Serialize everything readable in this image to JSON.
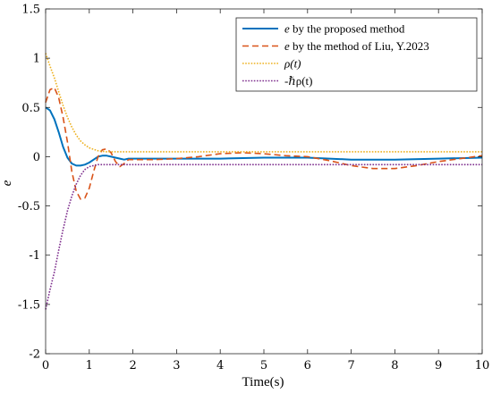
{
  "chart_data": {
    "type": "line",
    "title": "",
    "xlabel": "Time(s)",
    "ylabel": "e",
    "xlim": [
      0,
      10
    ],
    "ylim": [
      -2,
      1.5
    ],
    "xticks": [
      0,
      1,
      2,
      3,
      4,
      5,
      6,
      7,
      8,
      9,
      10
    ],
    "yticks": [
      -2,
      -1.5,
      -1,
      -0.5,
      0,
      0.5,
      1,
      1.5
    ],
    "xtick_labels": [
      "0",
      "1",
      "2",
      "3",
      "4",
      "5",
      "6",
      "7",
      "8",
      "9",
      "10"
    ],
    "ytick_labels": [
      "-2",
      "-1.5",
      "-1",
      "-0.5",
      "0",
      "0.5",
      "1",
      "1.5"
    ],
    "grid": false,
    "legend_position": "top-right",
    "series": [
      {
        "name": "e by the proposed method",
        "legend": {
          "italic": "e",
          "rest": " by the proposed method"
        },
        "color": "#0072BD",
        "style": "solid",
        "x": [
          0,
          0.1,
          0.2,
          0.3,
          0.4,
          0.5,
          0.6,
          0.7,
          0.8,
          0.9,
          1.0,
          1.1,
          1.2,
          1.3,
          1.4,
          1.5,
          1.6,
          1.7,
          1.8,
          1.9,
          2.0,
          2.5,
          3,
          4,
          5,
          6,
          7,
          8,
          9,
          10
        ],
        "y": [
          0.5,
          0.47,
          0.38,
          0.25,
          0.1,
          -0.01,
          -0.07,
          -0.09,
          -0.09,
          -0.08,
          -0.06,
          -0.03,
          0.0,
          0.01,
          0.01,
          0.0,
          -0.01,
          -0.02,
          -0.03,
          -0.02,
          -0.02,
          -0.02,
          -0.02,
          -0.02,
          -0.01,
          -0.01,
          -0.03,
          -0.03,
          -0.02,
          -0.01
        ]
      },
      {
        "name": "e by the method of Liu, Y.2023",
        "legend": {
          "italic": "e",
          "rest": " by the method of Liu, Y.2023"
        },
        "color": "#D95319",
        "style": "dashed",
        "x": [
          0,
          0.1,
          0.2,
          0.3,
          0.4,
          0.5,
          0.6,
          0.7,
          0.8,
          0.9,
          1.0,
          1.1,
          1.2,
          1.3,
          1.4,
          1.5,
          1.6,
          1.7,
          1.8,
          1.9,
          2.0,
          2.5,
          3,
          3.5,
          4,
          4.5,
          5,
          5.5,
          6,
          6.5,
          7,
          7.5,
          8,
          8.5,
          9,
          9.5,
          10
        ],
        "y": [
          0.55,
          0.68,
          0.7,
          0.6,
          0.4,
          0.15,
          -0.15,
          -0.35,
          -0.43,
          -0.42,
          -0.32,
          -0.15,
          0.0,
          0.07,
          0.08,
          0.04,
          -0.05,
          -0.1,
          -0.07,
          -0.03,
          -0.03,
          -0.03,
          -0.02,
          0.0,
          0.03,
          0.04,
          0.03,
          0.01,
          0.0,
          -0.04,
          -0.09,
          -0.12,
          -0.12,
          -0.09,
          -0.05,
          -0.02,
          0.01
        ]
      },
      {
        "name": "ρ(t)",
        "legend": {
          "italic": "ρ(t)",
          "rest": ""
        },
        "color": "#EDB120",
        "style": "dotted",
        "x": [
          0,
          0.1,
          0.2,
          0.3,
          0.4,
          0.5,
          0.6,
          0.7,
          0.8,
          0.9,
          1.0,
          1.2,
          1.4,
          1.6,
          2,
          3,
          4,
          5,
          6,
          7,
          8,
          9,
          10
        ],
        "y": [
          1.05,
          0.92,
          0.8,
          0.66,
          0.52,
          0.4,
          0.3,
          0.22,
          0.16,
          0.12,
          0.09,
          0.06,
          0.05,
          0.05,
          0.05,
          0.05,
          0.05,
          0.05,
          0.05,
          0.05,
          0.05,
          0.05,
          0.05
        ]
      },
      {
        "name": "-ℏρ(t)",
        "legend": {
          "italic": "",
          "rest": "-ℏρ(t)"
        },
        "color": "#7E2F8E",
        "style": "dotted",
        "x": [
          0,
          0.1,
          0.2,
          0.3,
          0.4,
          0.5,
          0.6,
          0.7,
          0.8,
          0.9,
          1.0,
          1.2,
          1.4,
          1.6,
          2,
          3,
          4,
          5,
          6,
          7,
          8,
          9,
          10
        ],
        "y": [
          -1.55,
          -1.35,
          -1.17,
          -0.95,
          -0.74,
          -0.55,
          -0.4,
          -0.28,
          -0.19,
          -0.13,
          -0.1,
          -0.08,
          -0.08,
          -0.08,
          -0.08,
          -0.08,
          -0.08,
          -0.08,
          -0.08,
          -0.08,
          -0.08,
          -0.08,
          -0.08
        ]
      }
    ]
  }
}
